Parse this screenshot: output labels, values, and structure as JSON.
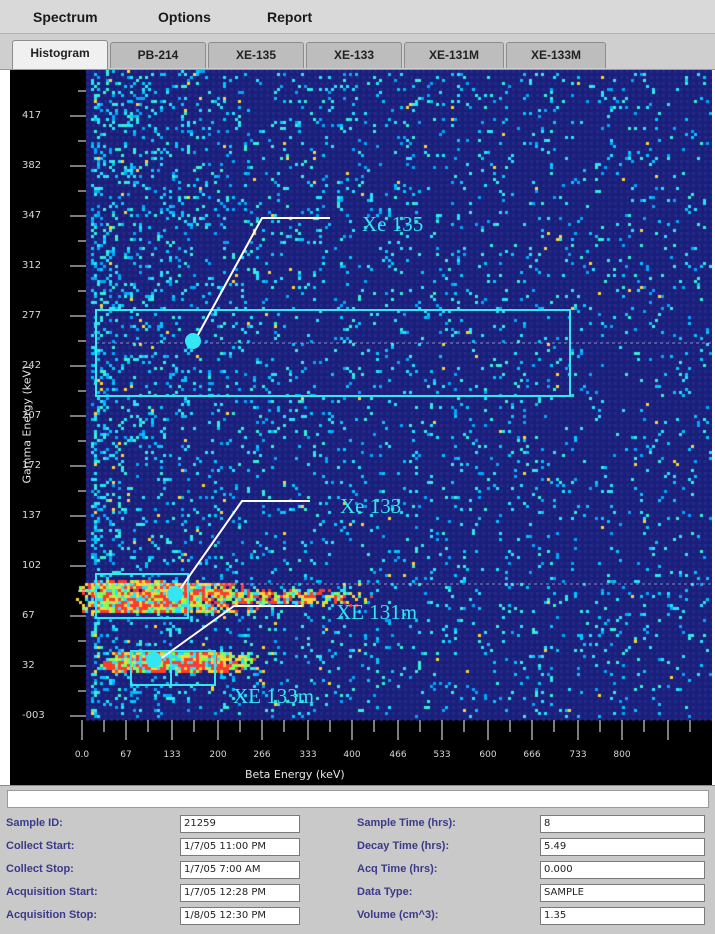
{
  "menu": [
    "Spectrum",
    "Options",
    "Report"
  ],
  "tabs": [
    "Histogram",
    "PB-214",
    "XE-135",
    "XE-133",
    "XE-131M",
    "XE-133M"
  ],
  "active_tab": "Histogram",
  "plot": {
    "y_axis_label": "Gamma Energy (keV)",
    "x_axis_label": "Beta Energy (keV)",
    "y_tick_labels": [
      "417",
      "382",
      "347",
      "312",
      "277",
      "242",
      "207",
      "172",
      "137",
      "102",
      "67",
      "32",
      "-003"
    ],
    "x_tick_labels": [
      "0.0",
      "67",
      "133",
      "200",
      "266",
      "333",
      "400",
      "466",
      "533",
      "600",
      "666",
      "733",
      "800"
    ],
    "colors": {
      "background": "#1a1f7a",
      "annotation": "#33e6f2"
    }
  },
  "annotations": [
    {
      "label": "Xe 135"
    },
    {
      "label": "Xe 133"
    },
    {
      "label": "XE 131m"
    },
    {
      "label": "XE 133m"
    }
  ],
  "form": {
    "left": [
      {
        "label": "Sample ID:",
        "value": "21259"
      },
      {
        "label": "Collect Start:",
        "value": "1/7/05 11:00 PM"
      },
      {
        "label": "Collect Stop:",
        "value": "1/7/05 7:00 AM"
      },
      {
        "label": "Acquisition Start:",
        "value": "1/7/05 12:28 PM"
      },
      {
        "label": "Acquisition Stop:",
        "value": "1/8/05 12:30 PM"
      }
    ],
    "right": [
      {
        "label": "Sample Time (hrs):",
        "value": "8"
      },
      {
        "label": "Decay Time (hrs):",
        "value": "5.49"
      },
      {
        "label": "Acq Time (hrs):",
        "value": "0.000"
      },
      {
        "label": "Data Type:",
        "value": "SAMPLE"
      },
      {
        "label": "Volume (cm^3):",
        "value": "1.35"
      }
    ]
  }
}
